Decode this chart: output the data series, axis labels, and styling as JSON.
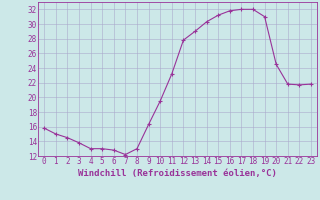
{
  "x": [
    0,
    1,
    2,
    3,
    4,
    5,
    6,
    7,
    8,
    9,
    10,
    11,
    12,
    13,
    14,
    15,
    16,
    17,
    18,
    19,
    20,
    21,
    22,
    23
  ],
  "y": [
    15.8,
    15.0,
    14.5,
    13.8,
    13.0,
    13.0,
    12.8,
    12.2,
    13.0,
    16.3,
    19.5,
    23.2,
    27.8,
    29.0,
    30.3,
    31.2,
    31.8,
    32.0,
    32.0,
    31.0,
    24.5,
    21.8,
    21.7,
    21.8
  ],
  "line_color": "#993399",
  "marker": "+",
  "marker_size": 3,
  "xlabel": "Windchill (Refroidissement éolien,°C)",
  "xlabel_color": "#993399",
  "xlabel_fontsize": 6.5,
  "bg_color": "#cce8e8",
  "grid_color": "#aaaacc",
  "tick_color": "#993399",
  "ylim": [
    12,
    33
  ],
  "yticks": [
    12,
    14,
    16,
    18,
    20,
    22,
    24,
    26,
    28,
    30,
    32
  ],
  "xlim": [
    -0.5,
    23.5
  ],
  "xticks": [
    0,
    1,
    2,
    3,
    4,
    5,
    6,
    7,
    8,
    9,
    10,
    11,
    12,
    13,
    14,
    15,
    16,
    17,
    18,
    19,
    20,
    21,
    22,
    23
  ],
  "tick_fontsize": 5.5,
  "spine_color": "#993399",
  "linewidth": 0.8
}
